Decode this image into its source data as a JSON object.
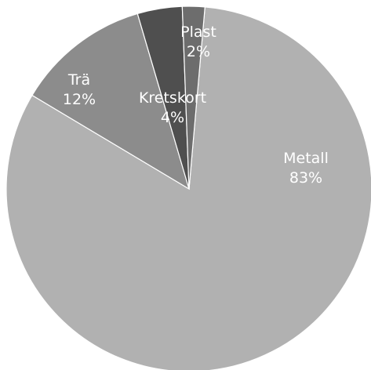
{
  "chart_data": {
    "type": "pie",
    "slices": [
      {
        "label": "Metall",
        "value": 83,
        "value_label": "83%",
        "color": "#b1b1b1"
      },
      {
        "label": "Trä",
        "value": 12,
        "value_label": "12%",
        "color": "#8c8c8c"
      },
      {
        "label": "Kretskort",
        "value": 4,
        "value_label": "4%",
        "color": "#4f4f4f"
      },
      {
        "label": "Plast",
        "value": 2,
        "value_label": "2%",
        "color": "#6d6d6d"
      }
    ]
  }
}
